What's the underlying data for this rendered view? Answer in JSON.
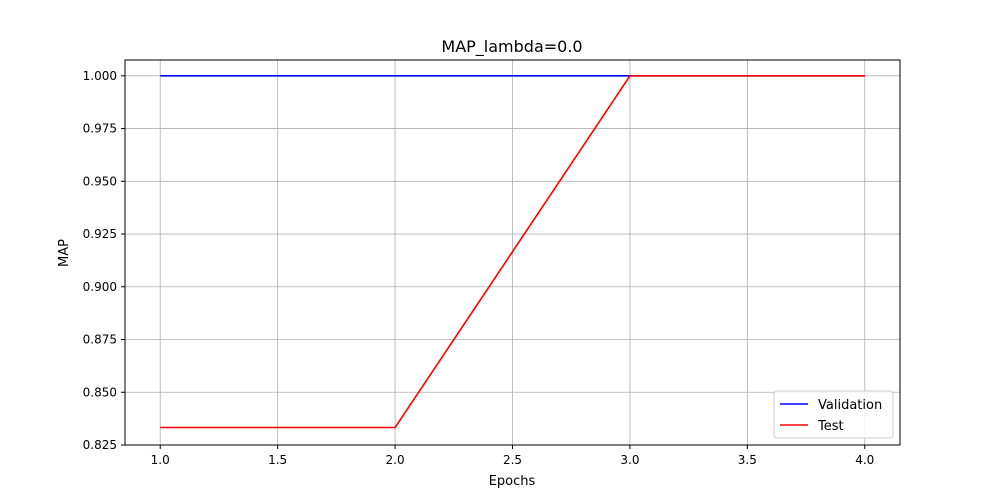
{
  "chart_data": {
    "type": "line",
    "title": "MAP_lambda=0.0",
    "xlabel": "Epochs",
    "ylabel": "MAP",
    "xlim": [
      0.85,
      4.15
    ],
    "ylim": [
      0.825,
      1.0075
    ],
    "x_ticks": [
      1.0,
      1.5,
      2.0,
      2.5,
      3.0,
      3.5,
      4.0
    ],
    "x_tick_labels": [
      "1.0",
      "1.5",
      "2.0",
      "2.5",
      "3.0",
      "3.5",
      "4.0"
    ],
    "y_ticks": [
      0.825,
      0.85,
      0.875,
      0.9,
      0.925,
      0.95,
      0.975,
      1.0
    ],
    "y_tick_labels": [
      "0.825",
      "0.850",
      "0.875",
      "0.900",
      "0.925",
      "0.950",
      "0.975",
      "1.000"
    ],
    "grid": true,
    "legend_position": "bottom-right",
    "series": [
      {
        "name": "Validation",
        "color": "#0000ff",
        "x": [
          1,
          2,
          3,
          4
        ],
        "y": [
          1.0,
          1.0,
          1.0,
          1.0
        ]
      },
      {
        "name": "Test",
        "color": "#ff0000",
        "x": [
          1,
          2,
          3,
          4
        ],
        "y": [
          0.8333,
          0.8333,
          1.0,
          1.0
        ]
      }
    ]
  }
}
